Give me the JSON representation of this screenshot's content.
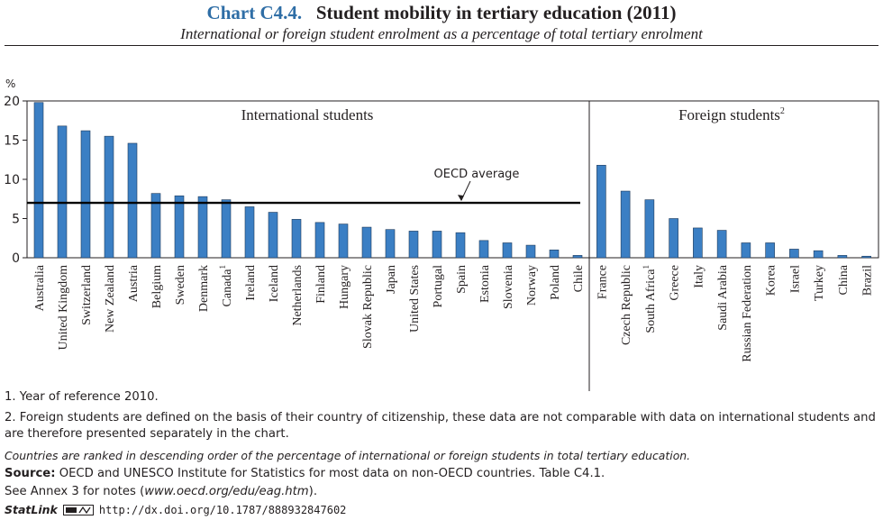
{
  "header": {
    "chart_number": "Chart C4.4.",
    "title": "Student mobility in tertiary education (2011)",
    "subtitle": "International or foreign student enrolment as a percentage of total tertiary enrolment"
  },
  "colors": {
    "bar": "#3b7fc4",
    "bar_outline": "#1f3a5a",
    "title_accent": "#2f6ea6",
    "text": "#231f20"
  },
  "chart_data": {
    "type": "bar",
    "ylabel": "%",
    "ylim": [
      0,
      20
    ],
    "yticks": [
      0,
      5,
      10,
      15,
      20
    ],
    "grid": false,
    "panels": [
      {
        "label": "International students",
        "categories": [
          "Australia",
          "United Kingdom",
          "Switzerland",
          "New Zealand",
          "Austria",
          "Belgium",
          "Sweden",
          "Denmark",
          "Canada",
          "Ireland",
          "Iceland",
          "Netherlands",
          "Finland",
          "Hungary",
          "Slovak Republic",
          "Japan",
          "United States",
          "Portugal",
          "Spain",
          "Estonia",
          "Slovenia",
          "Norway",
          "Poland",
          "Chile"
        ],
        "footnote_marks": [
          "",
          "",
          "",
          "",
          "",
          "",
          "",
          "",
          "1",
          "",
          "",
          "",
          "",
          "",
          "",
          "",
          "",
          "",
          "",
          "",
          "",
          "",
          "",
          ""
        ],
        "values": [
          19.8,
          16.8,
          16.2,
          15.5,
          14.6,
          8.2,
          7.9,
          7.8,
          7.4,
          6.5,
          5.8,
          4.9,
          4.5,
          4.3,
          3.9,
          3.6,
          3.4,
          3.4,
          3.2,
          2.2,
          1.9,
          1.6,
          1.0,
          0.3
        ],
        "reference_line": {
          "label": "OECD average",
          "value": 7.0
        }
      },
      {
        "label": "Foreign students",
        "label_mark": "2",
        "categories": [
          "France",
          "Czech Republic",
          "South Africa",
          "Greece",
          "Italy",
          "Saudi Arabia",
          "Russian Federation",
          "Korea",
          "Israel",
          "Turkey",
          "China",
          "Brazil"
        ],
        "footnote_marks": [
          "",
          "",
          "1",
          "",
          "",
          "",
          "",
          "",
          "",
          "",
          "",
          ""
        ],
        "values": [
          11.8,
          8.5,
          7.4,
          5.0,
          3.8,
          3.5,
          1.9,
          1.9,
          1.1,
          0.9,
          0.3,
          0.2
        ]
      }
    ]
  },
  "notes": {
    "note1": "1. Year of reference 2010.",
    "note2": "2. Foreign students are defined on the basis of their country of citizenship, these data are not comparable with data on international students and are therefore presented separately in the chart.",
    "ranking": "Countries are ranked in descending order of the percentage of international or foreign students in total tertiary education.",
    "source_label": "Source:",
    "source": "OECD and UNESCO Institute for Statistics for most data on non-OECD countries. Table C4.1.",
    "annex_prefix": "See Annex 3 for notes (",
    "annex_link": "www.oecd.org/edu/eag.htm",
    "annex_suffix": ").",
    "statlink_label": "StatLink",
    "statlink_url": "http://dx.doi.org/10.1787/888932847602"
  }
}
